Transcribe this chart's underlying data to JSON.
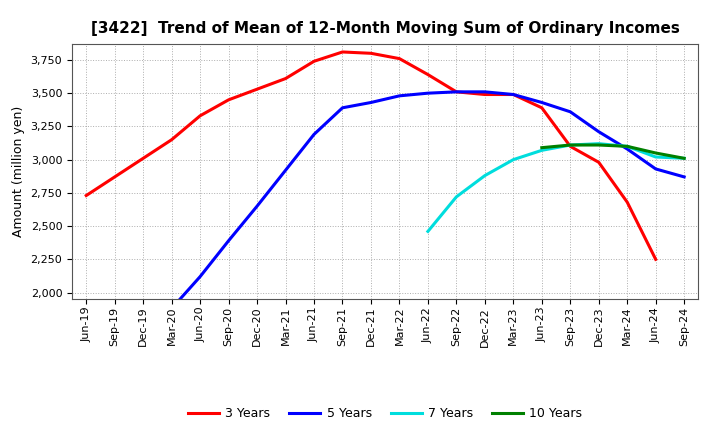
{
  "title": "[3422]  Trend of Mean of 12-Month Moving Sum of Ordinary Incomes",
  "ylabel": "Amount (million yen)",
  "background_color": "#ffffff",
  "plot_bg_color": "#ffffff",
  "grid_color": "#999999",
  "ylim": [
    1950,
    3870
  ],
  "yticks": [
    2000,
    2250,
    2500,
    2750,
    3000,
    3250,
    3500,
    3750
  ],
  "x_labels": [
    "Jun-19",
    "Sep-19",
    "Dec-19",
    "Mar-20",
    "Jun-20",
    "Sep-20",
    "Dec-20",
    "Mar-21",
    "Jun-21",
    "Sep-21",
    "Dec-21",
    "Mar-22",
    "Jun-22",
    "Sep-22",
    "Dec-22",
    "Mar-23",
    "Jun-23",
    "Sep-23",
    "Dec-23",
    "Mar-24",
    "Jun-24",
    "Sep-24"
  ],
  "series": [
    {
      "label": "3 Years",
      "color": "#ff0000",
      "x": [
        0,
        1,
        2,
        3,
        4,
        5,
        6,
        7,
        8,
        9,
        10,
        11,
        12,
        13,
        14,
        15,
        16,
        17,
        18,
        19,
        20
      ],
      "y": [
        2730,
        2870,
        3010,
        3150,
        3330,
        3450,
        3530,
        3610,
        3740,
        3810,
        3800,
        3760,
        3640,
        3510,
        3490,
        3490,
        3390,
        3100,
        2980,
        2680,
        2250
      ]
    },
    {
      "label": "5 Years",
      "color": "#0000ff",
      "x": [
        3,
        4,
        5,
        6,
        7,
        8,
        9,
        10,
        11,
        12,
        13,
        14,
        15,
        16,
        17,
        18,
        19,
        20,
        21
      ],
      "y": [
        1880,
        2120,
        2390,
        2650,
        2920,
        3190,
        3390,
        3430,
        3480,
        3500,
        3510,
        3510,
        3490,
        3430,
        3360,
        3210,
        3080,
        2930,
        2870
      ]
    },
    {
      "label": "7 Years",
      "color": "#00dddd",
      "x": [
        12,
        13,
        14,
        15,
        16,
        17,
        18,
        19,
        20,
        21
      ],
      "y": [
        2460,
        2720,
        2880,
        3000,
        3070,
        3110,
        3120,
        3100,
        3020,
        3010
      ]
    },
    {
      "label": "10 Years",
      "color": "#008000",
      "x": [
        16,
        17,
        18,
        19,
        20,
        21
      ],
      "y": [
        3090,
        3110,
        3110,
        3100,
        3050,
        3010
      ]
    }
  ],
  "title_fontsize": 11,
  "label_fontsize": 9,
  "tick_fontsize": 8,
  "linewidth": 2.2
}
